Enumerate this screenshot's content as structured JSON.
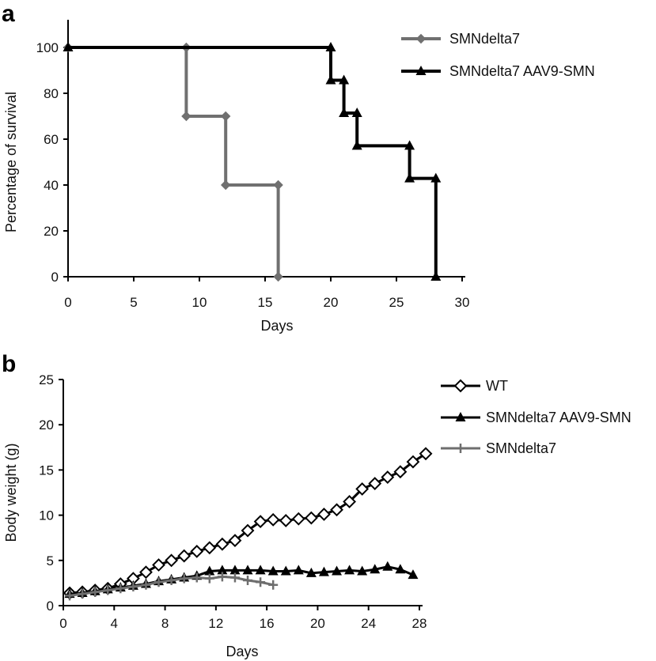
{
  "chart_data": [
    {
      "panel_label": "a",
      "type": "line",
      "step": true,
      "xlabel": "Days",
      "ylabel": "Percentage of survival",
      "xlim": [
        0,
        30
      ],
      "ylim": [
        0,
        100
      ],
      "xticks": [
        0,
        5,
        10,
        15,
        20,
        25,
        30
      ],
      "yticks": [
        0,
        20,
        40,
        60,
        80,
        100
      ],
      "legend_position": "top-right",
      "series": [
        {
          "name": "SMNdelta7",
          "color": "#707070",
          "marker": "diamond",
          "x": [
            0,
            9,
            9,
            12,
            12,
            16,
            16
          ],
          "y": [
            100,
            100,
            70,
            70,
            40,
            40,
            0
          ]
        },
        {
          "name": "SMNdelta7 AAV9-SMN",
          "color": "#000000",
          "marker": "triangle",
          "x": [
            0,
            20,
            20,
            21,
            21,
            22,
            22,
            26,
            26,
            28,
            28
          ],
          "y": [
            100,
            100,
            85.7,
            85.7,
            71.4,
            71.4,
            57.1,
            57.1,
            42.9,
            42.9,
            0
          ]
        }
      ]
    },
    {
      "panel_label": "b",
      "type": "line",
      "step": false,
      "xlabel": "Days",
      "ylabel": "Body weight (g)",
      "xlim": [
        0,
        28
      ],
      "ylim": [
        0,
        25
      ],
      "xticks": [
        0,
        4,
        8,
        12,
        16,
        20,
        24,
        28
      ],
      "yticks": [
        0,
        5,
        10,
        15,
        20,
        25
      ],
      "legend_position": "top-right",
      "series": [
        {
          "name": "WT",
          "color": "#000000",
          "marker": "open-diamond",
          "x": [
            0.5,
            1.5,
            2.5,
            3.5,
            4.5,
            5.5,
            6.5,
            7.5,
            8.5,
            9.5,
            10.5,
            11.5,
            12.5,
            13.5,
            14.5,
            15.5,
            16.5,
            17.5,
            18.5,
            19.5,
            20.5,
            21.5,
            22.5,
            23.5,
            24.5,
            25.5,
            26.5,
            27.5,
            28.5
          ],
          "y": [
            1.4,
            1.5,
            1.7,
            1.9,
            2.4,
            3.0,
            3.7,
            4.5,
            5.0,
            5.5,
            6.0,
            6.4,
            6.8,
            7.2,
            8.3,
            9.3,
            9.5,
            9.4,
            9.6,
            9.7,
            10.1,
            10.6,
            11.5,
            12.9,
            13.5,
            14.2,
            14.8,
            15.9,
            16.8
          ]
        },
        {
          "name": "SMNdelta7 AAV9-SMN",
          "color": "#000000",
          "marker": "triangle",
          "x": [
            0.5,
            1.5,
            2.5,
            3.5,
            4.5,
            5.5,
            6.5,
            7.5,
            8.5,
            9.5,
            10.5,
            11.5,
            12.5,
            13.5,
            14.5,
            15.5,
            16.5,
            17.5,
            18.5,
            19.5,
            20.5,
            21.5,
            22.5,
            23.5,
            24.5,
            25.5,
            26.5,
            27.5
          ],
          "y": [
            1.3,
            1.4,
            1.6,
            1.8,
            2.0,
            2.2,
            2.4,
            2.7,
            2.9,
            3.1,
            3.3,
            3.8,
            3.9,
            3.9,
            3.9,
            3.9,
            3.8,
            3.8,
            3.9,
            3.6,
            3.7,
            3.8,
            3.9,
            3.8,
            4.0,
            4.3,
            4.0,
            3.4
          ]
        },
        {
          "name": "SMNdelta7",
          "color": "#6e6e6e",
          "marker": "plus",
          "x": [
            0.5,
            1.5,
            2.5,
            3.5,
            4.5,
            5.5,
            6.5,
            7.5,
            8.5,
            9.5,
            10.5,
            11.5,
            12.5,
            13.5,
            14.5,
            15.5,
            16.5
          ],
          "y": [
            1.1,
            1.3,
            1.5,
            1.7,
            1.9,
            2.1,
            2.3,
            2.6,
            2.8,
            3.0,
            3.1,
            3.0,
            3.2,
            3.1,
            2.8,
            2.6,
            2.3
          ]
        }
      ]
    }
  ]
}
